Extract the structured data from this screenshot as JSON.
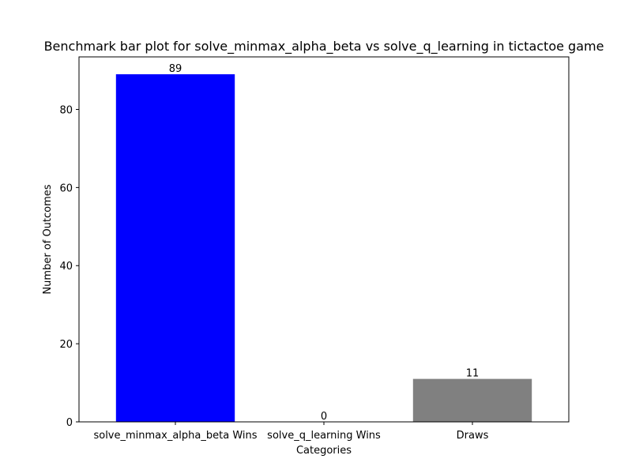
{
  "chart_data": {
    "type": "bar",
    "title": "Benchmark bar plot for solve_minmax_alpha_beta vs solve_q_learning in tictactoe game",
    "xlabel": "Categories",
    "ylabel": "Number of Outcomes",
    "categories": [
      "solve_minmax_alpha_beta Wins",
      "solve_q_learning Wins",
      "Draws"
    ],
    "values": [
      89,
      0,
      11
    ],
    "colors": [
      "#0000ff",
      "#ff0000",
      "#808080"
    ],
    "ylim": [
      0,
      93.45
    ],
    "yticks": [
      0,
      20,
      40,
      60,
      80
    ],
    "grid": false,
    "legend": false
  }
}
